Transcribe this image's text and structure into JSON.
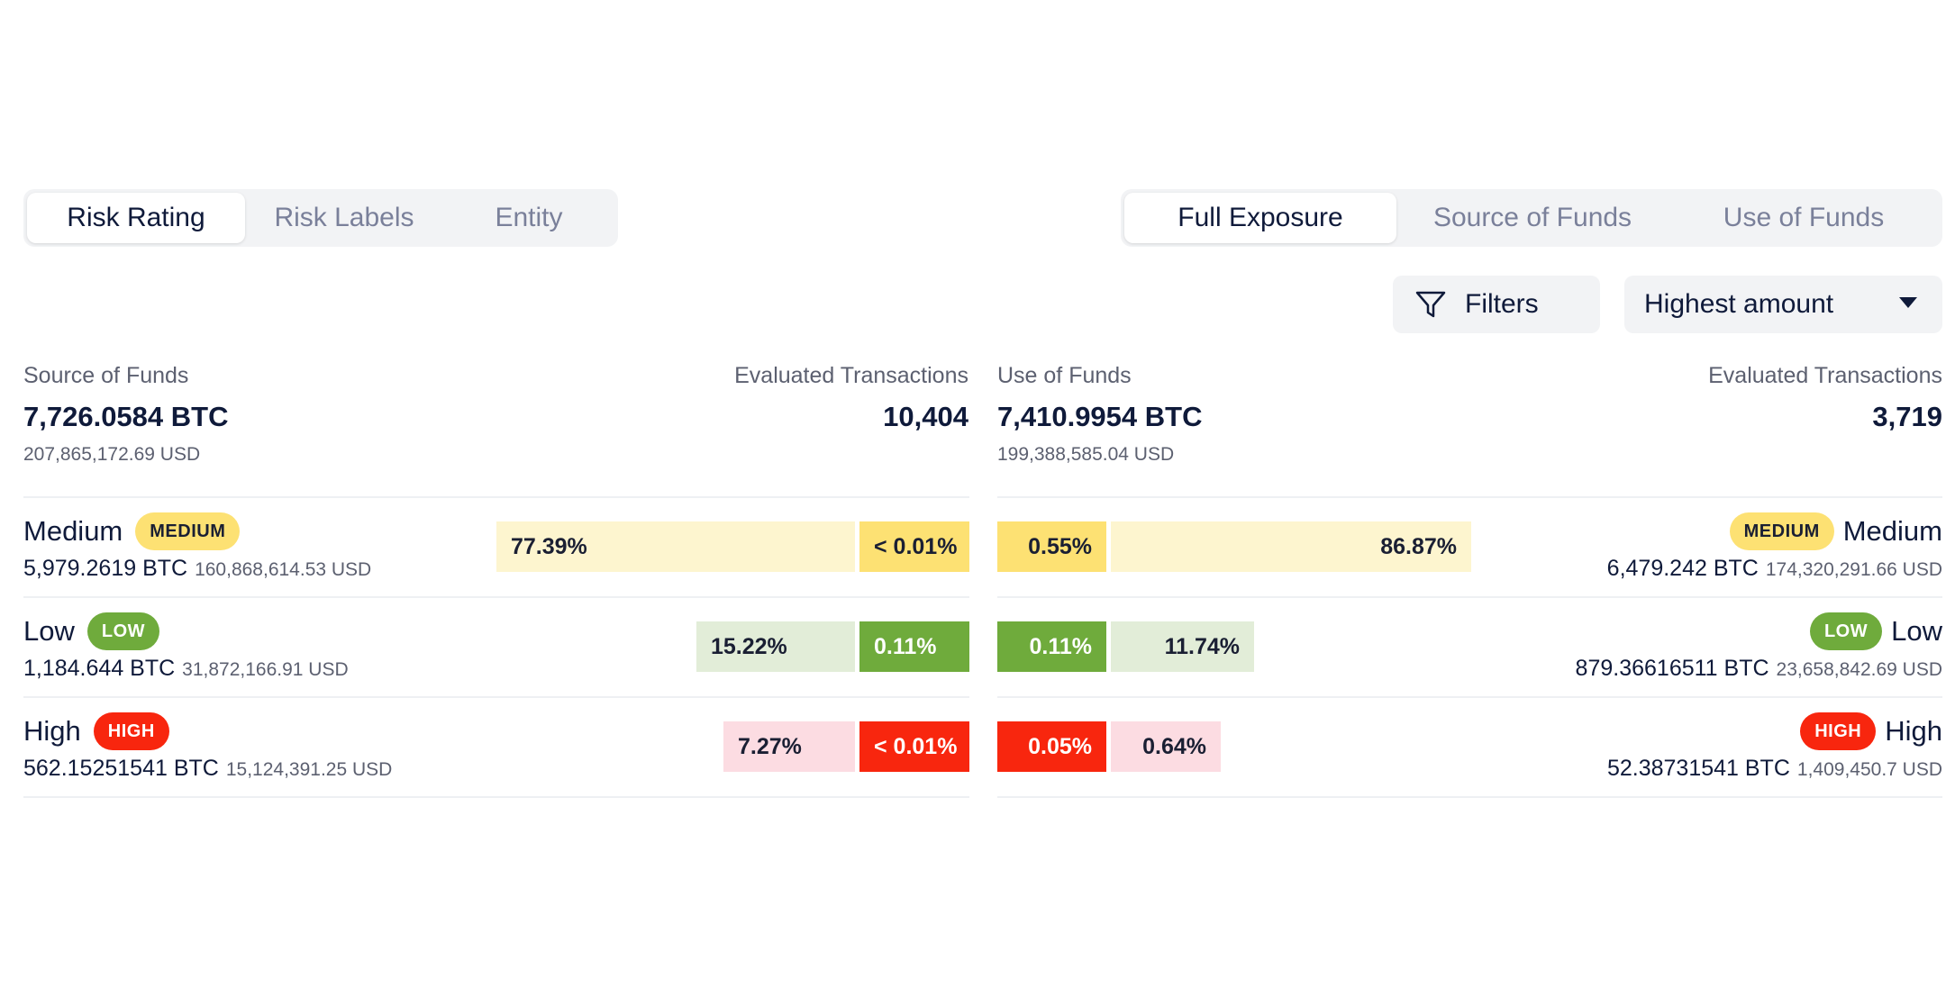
{
  "left_tabs": [
    {
      "label": "Risk Rating",
      "active": true
    },
    {
      "label": "Risk Labels",
      "active": false
    },
    {
      "label": "Entity",
      "active": false
    }
  ],
  "right_tabs": [
    {
      "label": "Full Exposure",
      "active": true
    },
    {
      "label": "Source of Funds",
      "active": false
    },
    {
      "label": "Use of Funds",
      "active": false
    }
  ],
  "filters_label": "Filters",
  "sort_label": "Highest amount",
  "source": {
    "title": "Source of Funds",
    "btc": "7,726.0584 BTC",
    "usd": "207,865,172.69 USD",
    "eval_label": "Evaluated Transactions",
    "eval_value": "10,404"
  },
  "use": {
    "title": "Use of Funds",
    "btc": "7,410.9954 BTC",
    "usd": "199,388,585.04 USD",
    "eval_label": "Evaluated Transactions",
    "eval_value": "3,719"
  },
  "source_rows": [
    {
      "name": "Medium",
      "badge": "MEDIUM",
      "btc": "5,979.2619 BTC",
      "usd": "160,868,614.53 USD",
      "pct_light": "77.39%",
      "pct_solid": "< 0.01%"
    },
    {
      "name": "Low",
      "badge": "LOW",
      "btc": "1,184.644 BTC",
      "usd": "31,872,166.91 USD",
      "pct_light": "15.22%",
      "pct_solid": "0.11%"
    },
    {
      "name": "High",
      "badge": "HIGH",
      "btc": "562.15251541 BTC",
      "usd": "15,124,391.25 USD",
      "pct_light": "7.27%",
      "pct_solid": "< 0.01%"
    }
  ],
  "use_rows": [
    {
      "name": "Medium",
      "badge": "MEDIUM",
      "btc": "6,479.242 BTC",
      "usd": "174,320,291.66 USD",
      "pct_solid": "0.55%",
      "pct_light": "86.87%"
    },
    {
      "name": "Low",
      "badge": "LOW",
      "btc": "879.36616511 BTC",
      "usd": "23,658,842.69 USD",
      "pct_solid": "0.11%",
      "pct_light": "11.74%"
    },
    {
      "name": "High",
      "badge": "HIGH",
      "btc": "52.38731541 BTC",
      "usd": "1,409,450.7 USD",
      "pct_solid": "0.05%",
      "pct_light": "0.64%"
    }
  ],
  "colors": {
    "medium": "#fde173",
    "medium_light": "#fdf5cf",
    "low": "#6fab3c",
    "low_light": "#e2edd8",
    "high": "#f8260e",
    "high_light": "#fcdce2",
    "text": "#0f1a3a"
  },
  "icons": {
    "filters": "funnel-icon",
    "sort": "caret-down-icon"
  }
}
